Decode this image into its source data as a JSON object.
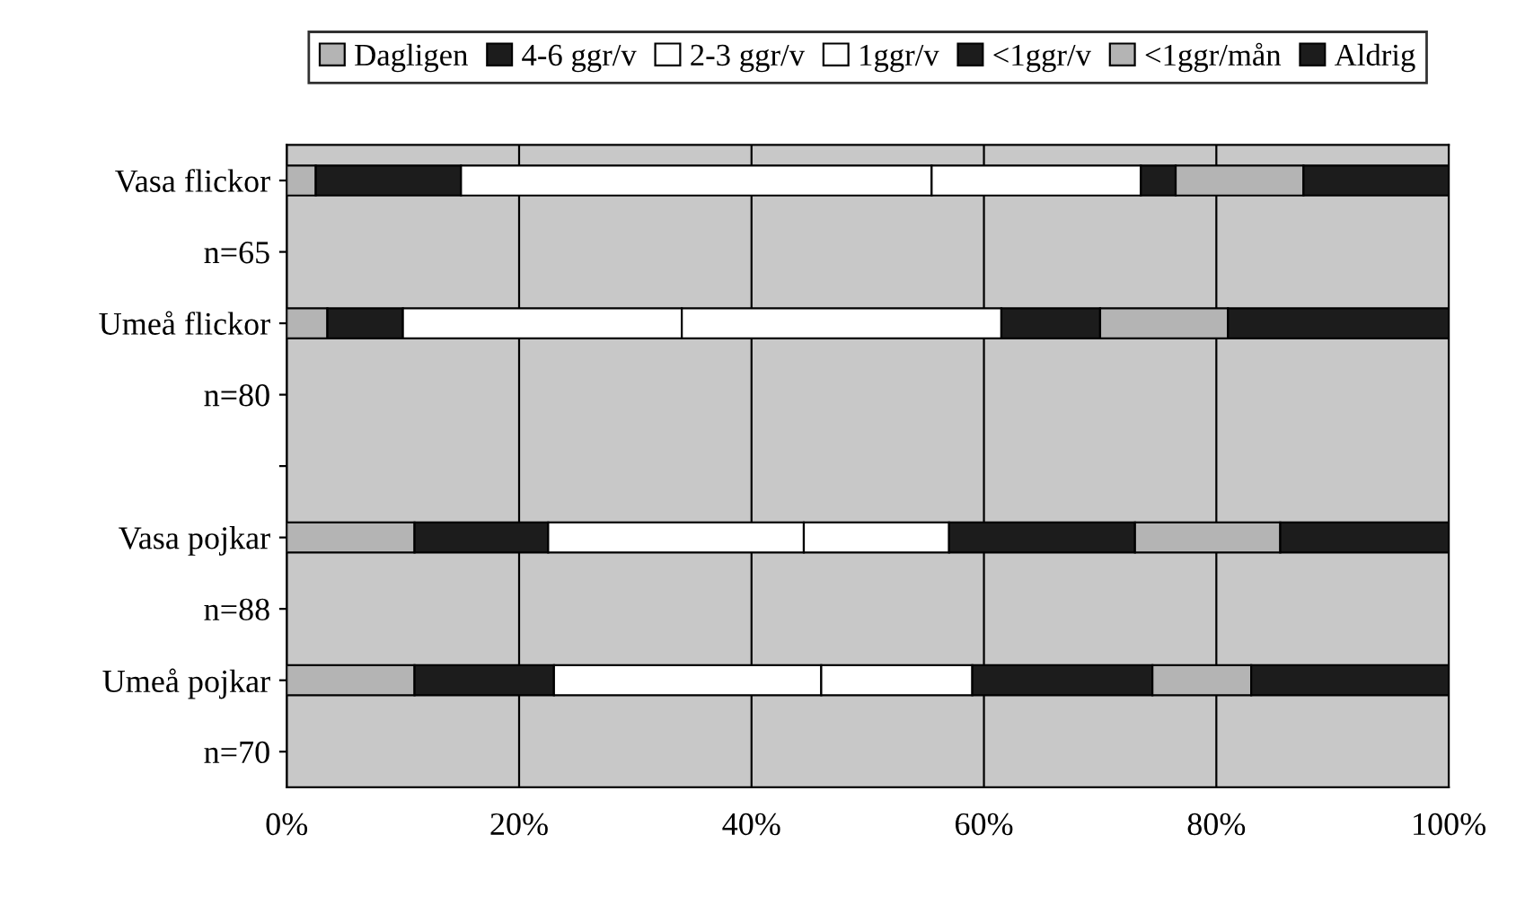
{
  "chart_data": {
    "type": "bar",
    "orientation": "horizontal",
    "stacked": true,
    "categories": [
      "Vasa flickor",
      "n=65",
      "Umeå flickor",
      "n=80",
      null,
      "Vasa pojkar",
      "n=88",
      "Umeå pojkar",
      "n=70"
    ],
    "series": [
      {
        "name": "Dagligen",
        "color": "#b4b4b4",
        "values": [
          2.5,
          null,
          3.5,
          null,
          null,
          11,
          null,
          11,
          null
        ]
      },
      {
        "name": "4-6 ggr/v",
        "color": "#1c1c1c",
        "values": [
          12.5,
          null,
          6.5,
          null,
          null,
          11.5,
          null,
          12,
          null
        ]
      },
      {
        "name": "2-3 ggr/v",
        "color": "#ffffff",
        "values": [
          40.5,
          null,
          24,
          null,
          null,
          22,
          null,
          23,
          null
        ]
      },
      {
        "name": "1ggr/v",
        "color": "#ffffff",
        "values": [
          18,
          null,
          27.5,
          null,
          null,
          12.5,
          null,
          13,
          null
        ]
      },
      {
        "name": "<1ggr/v",
        "color": "#1c1c1c",
        "values": [
          3,
          null,
          8.5,
          null,
          null,
          16,
          null,
          15.5,
          null
        ]
      },
      {
        "name": "<1ggr/mån",
        "color": "#b4b4b4",
        "values": [
          11,
          null,
          11,
          null,
          null,
          12.5,
          null,
          8.5,
          null
        ]
      },
      {
        "name": "Aldrig",
        "color": "#1c1c1c",
        "values": [
          12.5,
          null,
          19,
          null,
          null,
          14.5,
          null,
          17,
          null
        ]
      }
    ],
    "xlim": [
      0,
      100
    ],
    "xticks": [
      {
        "value": 0,
        "label": "0%"
      },
      {
        "value": 20,
        "label": "20%"
      },
      {
        "value": 40,
        "label": "40%"
      },
      {
        "value": 60,
        "label": "60%"
      },
      {
        "value": 80,
        "label": "80%"
      },
      {
        "value": 100,
        "label": "100%"
      }
    ],
    "grid": "x",
    "legend": "top"
  }
}
